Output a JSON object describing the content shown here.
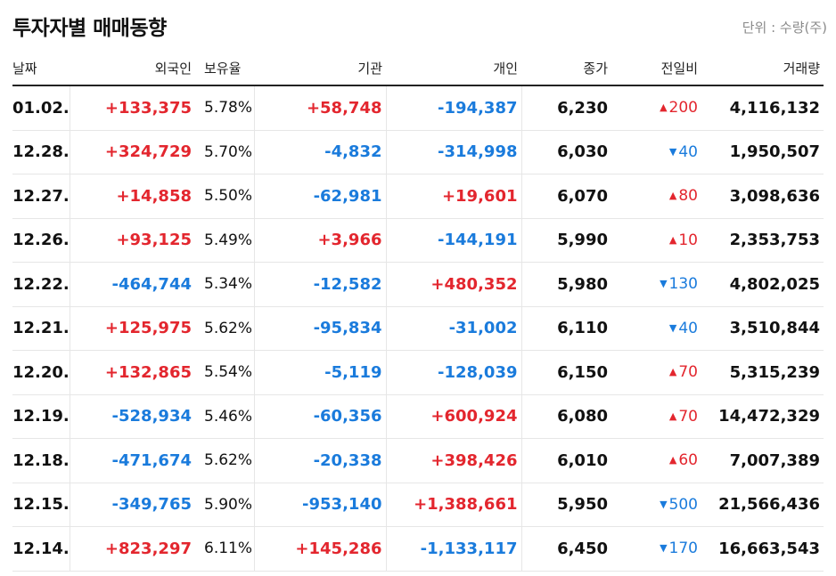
{
  "title": "투자자별 매매동향",
  "unit_label": "단위 : 수량(주)",
  "colors": {
    "up": "#e3262e",
    "down": "#1a7bdc",
    "text": "#111111"
  },
  "columns": [
    "날짜",
    "외국인",
    "보유율",
    "기관",
    "개인",
    "종가",
    "전일비",
    "거래량"
  ],
  "rows": [
    {
      "date": "01.02.",
      "foreign": "+133,375",
      "foreign_dir": "up",
      "ratio": "5.78%",
      "inst": "+58,748",
      "inst_dir": "up",
      "indiv": "-194,387",
      "indiv_dir": "down",
      "close": "6,230",
      "change": "200",
      "change_dir": "up",
      "volume": "4,116,132"
    },
    {
      "date": "12.28.",
      "foreign": "+324,729",
      "foreign_dir": "up",
      "ratio": "5.70%",
      "inst": "-4,832",
      "inst_dir": "down",
      "indiv": "-314,998",
      "indiv_dir": "down",
      "close": "6,030",
      "change": "40",
      "change_dir": "down",
      "volume": "1,950,507"
    },
    {
      "date": "12.27.",
      "foreign": "+14,858",
      "foreign_dir": "up",
      "ratio": "5.50%",
      "inst": "-62,981",
      "inst_dir": "down",
      "indiv": "+19,601",
      "indiv_dir": "up",
      "close": "6,070",
      "change": "80",
      "change_dir": "up",
      "volume": "3,098,636"
    },
    {
      "date": "12.26.",
      "foreign": "+93,125",
      "foreign_dir": "up",
      "ratio": "5.49%",
      "inst": "+3,966",
      "inst_dir": "up",
      "indiv": "-144,191",
      "indiv_dir": "down",
      "close": "5,990",
      "change": "10",
      "change_dir": "up",
      "volume": "2,353,753"
    },
    {
      "date": "12.22.",
      "foreign": "-464,744",
      "foreign_dir": "down",
      "ratio": "5.34%",
      "inst": "-12,582",
      "inst_dir": "down",
      "indiv": "+480,352",
      "indiv_dir": "up",
      "close": "5,980",
      "change": "130",
      "change_dir": "down",
      "volume": "4,802,025"
    },
    {
      "date": "12.21.",
      "foreign": "+125,975",
      "foreign_dir": "up",
      "ratio": "5.62%",
      "inst": "-95,834",
      "inst_dir": "down",
      "indiv": "-31,002",
      "indiv_dir": "down",
      "close": "6,110",
      "change": "40",
      "change_dir": "down",
      "volume": "3,510,844"
    },
    {
      "date": "12.20.",
      "foreign": "+132,865",
      "foreign_dir": "up",
      "ratio": "5.54%",
      "inst": "-5,119",
      "inst_dir": "down",
      "indiv": "-128,039",
      "indiv_dir": "down",
      "close": "6,150",
      "change": "70",
      "change_dir": "up",
      "volume": "5,315,239"
    },
    {
      "date": "12.19.",
      "foreign": "-528,934",
      "foreign_dir": "down",
      "ratio": "5.46%",
      "inst": "-60,356",
      "inst_dir": "down",
      "indiv": "+600,924",
      "indiv_dir": "up",
      "close": "6,080",
      "change": "70",
      "change_dir": "up",
      "volume": "14,472,329"
    },
    {
      "date": "12.18.",
      "foreign": "-471,674",
      "foreign_dir": "down",
      "ratio": "5.62%",
      "inst": "-20,338",
      "inst_dir": "down",
      "indiv": "+398,426",
      "indiv_dir": "up",
      "close": "6,010",
      "change": "60",
      "change_dir": "up",
      "volume": "7,007,389"
    },
    {
      "date": "12.15.",
      "foreign": "-349,765",
      "foreign_dir": "down",
      "ratio": "5.90%",
      "inst": "-953,140",
      "inst_dir": "down",
      "indiv": "+1,388,661",
      "indiv_dir": "up",
      "close": "5,950",
      "change": "500",
      "change_dir": "down",
      "volume": "21,566,436"
    },
    {
      "date": "12.14.",
      "foreign": "+823,297",
      "foreign_dir": "up",
      "ratio": "6.11%",
      "inst": "+145,286",
      "inst_dir": "up",
      "indiv": "-1,133,117",
      "indiv_dir": "down",
      "close": "6,450",
      "change": "170",
      "change_dir": "down",
      "volume": "16,663,543"
    }
  ]
}
